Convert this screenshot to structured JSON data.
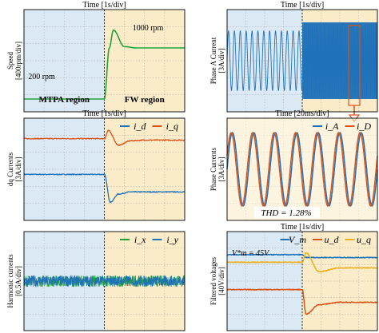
{
  "figure": {
    "colors": {
      "mtpa_bg": "#dbe9f4",
      "fw_bg": "#fbecc9",
      "green": "#21a33a",
      "orange": "#d9531b",
      "blue": "#1f72b8",
      "yellow": "#e8b020"
    }
  },
  "chart_data": [
    {
      "type": "line",
      "id": "speed",
      "title": "Time [1s/div]",
      "ylabel": "Speed [400rpm/div]",
      "regions": [
        "MTPA region",
        "FW region"
      ],
      "annotations": [
        "200 rpm",
        "1000 rpm"
      ],
      "series": [
        {
          "values": [
            200,
            200,
            200,
            1000,
            1280,
            1020,
            1000,
            1000
          ],
          "x": [
            0,
            2,
            4.0,
            4.25,
            4.45,
            5.0,
            5.6,
            8
          ]
        }
      ]
    },
    {
      "type": "line",
      "id": "phase-a",
      "title": "Time [1s/div]",
      "ylabel": "Phase A Current [3A/div]",
      "series": [
        {
          "description": "sinusoid amplitude (A)",
          "x": [
            0,
            4.0,
            4.1,
            8
          ],
          "values": [
            3.5,
            3.5,
            4.5,
            4.5
          ]
        }
      ]
    },
    {
      "type": "line",
      "id": "dq",
      "title": "Time [1s/div]",
      "ylabel": "dq Currents [3A/div]",
      "series": [
        {
          "name": "i_d",
          "x": [
            0,
            4.0,
            4.3,
            4.7,
            5.3,
            6,
            8
          ],
          "values": [
            0.3,
            0.3,
            -3.5,
            -2.4,
            -2.1,
            -2.1,
            -2.1
          ]
        },
        {
          "name": "i_q",
          "x": [
            0,
            4.0,
            4.2,
            4.7,
            5.3,
            6,
            8
          ],
          "values": [
            5.2,
            5.2,
            6.3,
            4.3,
            4.9,
            5.0,
            5.0
          ]
        }
      ]
    },
    {
      "type": "line",
      "id": "phase-currents",
      "title": "Time [20ms/div]",
      "ylabel": "Phase Currents [3A/div]",
      "annotations": [
        "THD = 1.28%"
      ],
      "series": [
        {
          "name": "i_A",
          "x": [
            0,
            160
          ],
          "values": [
            4.3,
            4.3
          ]
        },
        {
          "name": "i_D",
          "x": [
            0,
            160
          ],
          "values": [
            4.3,
            4.3
          ]
        }
      ]
    },
    {
      "type": "line",
      "id": "harmonic",
      "title": "",
      "ylabel": "Harmonic currents [0.5A/div]",
      "series": [
        {
          "name": "i_x",
          "x": [
            0,
            8
          ],
          "values": [
            0,
            0
          ]
        },
        {
          "name": "i_y",
          "x": [
            0,
            8
          ],
          "values": [
            0,
            0
          ]
        }
      ]
    },
    {
      "type": "line",
      "id": "voltages",
      "title": "Time [1s/div]",
      "ylabel": "Filtered voltages [40V/div]",
      "annotations": [
        "V*m = 45V"
      ],
      "series": [
        {
          "name": "V_m",
          "x": [
            0,
            4.0,
            4.2,
            8
          ],
          "values": [
            51,
            51,
            45,
            45
          ]
        },
        {
          "name": "u_d",
          "x": [
            0,
            4.0,
            4.2,
            4.9,
            6,
            8
          ],
          "values": [
            -23,
            -23,
            -75,
            -55,
            -50,
            -50
          ]
        },
        {
          "name": "u_q",
          "x": [
            0,
            4.0,
            4.2,
            4.9,
            6,
            8
          ],
          "values": [
            35,
            35,
            55,
            15,
            23,
            23
          ]
        }
      ]
    }
  ]
}
